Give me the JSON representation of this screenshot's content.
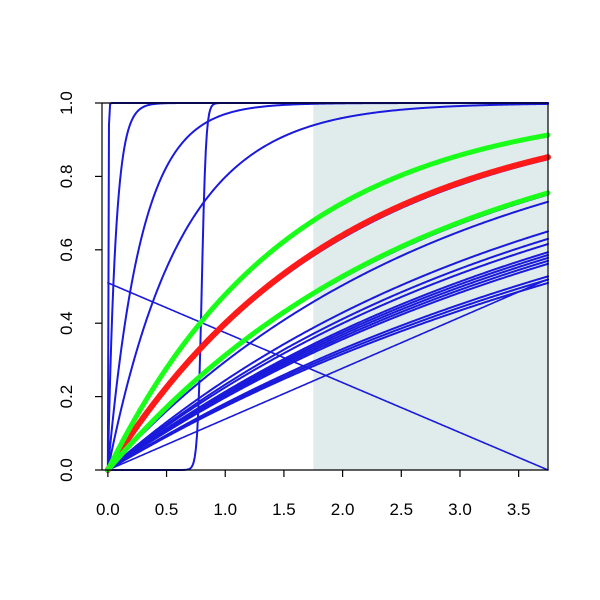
{
  "chart_data": {
    "type": "line",
    "title": "",
    "xlabel": "",
    "ylabel": "",
    "xlim": [
      -0.05,
      3.75
    ],
    "ylim": [
      0,
      1
    ],
    "grid": false,
    "legend": "none",
    "x_ticks": [
      "0.0",
      "0.5",
      "1.0",
      "1.5",
      "2.0",
      "2.5",
      "3.0",
      "3.5"
    ],
    "y_ticks": [
      "0.0",
      "0.2",
      "0.4",
      "0.6",
      "0.8",
      "1.0"
    ],
    "shaded_region": {
      "x_from": 1.75,
      "x_to": 3.75,
      "color": "#e0ecec"
    },
    "colors": {
      "blue": "#1a1adc",
      "red": "#ff1a1a",
      "green": "#1aff1a",
      "axis": "#000000"
    },
    "series": [
      {
        "kind": "exp",
        "k": 300,
        "color": "blue",
        "width": 2
      },
      {
        "kind": "exp",
        "k": 15,
        "color": "blue",
        "width": 2
      },
      {
        "kind": "exp",
        "k": 3.5,
        "color": "blue",
        "width": 2
      },
      {
        "kind": "exp",
        "k": 1.6,
        "color": "blue",
        "width": 2
      },
      {
        "kind": "logistic",
        "x0": 0.8,
        "s": 0.018,
        "color": "blue",
        "width": 2
      },
      {
        "kind": "linear",
        "y0": 0.51,
        "y1": 0.0,
        "color": "blue",
        "width": 1.6
      },
      {
        "kind": "exp",
        "k": 0.65,
        "color": "blue",
        "width": 2
      },
      {
        "kind": "exp",
        "k": 0.5,
        "color": "blue",
        "width": 2
      },
      {
        "kind": "exp",
        "k": 0.37,
        "color": "blue",
        "width": 2
      },
      {
        "kind": "exp",
        "k": 0.35,
        "color": "blue",
        "width": 2
      },
      {
        "kind": "exp",
        "k": 0.28,
        "color": "blue",
        "width": 2
      },
      {
        "kind": "exp",
        "k": 0.265,
        "color": "blue",
        "width": 2
      },
      {
        "kind": "exp",
        "k": 0.255,
        "color": "blue",
        "width": 2
      },
      {
        "kind": "exp",
        "k": 0.24,
        "color": "blue",
        "width": 2
      },
      {
        "kind": "exp",
        "k": 0.235,
        "color": "blue",
        "width": 2
      },
      {
        "kind": "exp",
        "k": 0.23,
        "color": "blue",
        "width": 2
      },
      {
        "kind": "exp",
        "k": 0.225,
        "color": "blue",
        "width": 2
      },
      {
        "kind": "exp",
        "k": 0.22,
        "color": "blue",
        "width": 2
      },
      {
        "kind": "exp",
        "k": 0.2,
        "color": "blue",
        "width": 2
      },
      {
        "kind": "exp",
        "k": 0.195,
        "color": "blue",
        "width": 2
      },
      {
        "kind": "exp",
        "k": 0.19,
        "color": "blue",
        "width": 2
      },
      {
        "kind": "linear",
        "y0": 0.0,
        "y1": 0.52,
        "color": "blue",
        "width": 1.6
      },
      {
        "kind": "exp",
        "k": 0.51,
        "color": "red",
        "width": 6
      },
      {
        "kind": "exp",
        "k": 0.65,
        "color": "green",
        "width": 5
      },
      {
        "kind": "exp",
        "k": 0.375,
        "color": "green",
        "width": 5
      }
    ]
  }
}
